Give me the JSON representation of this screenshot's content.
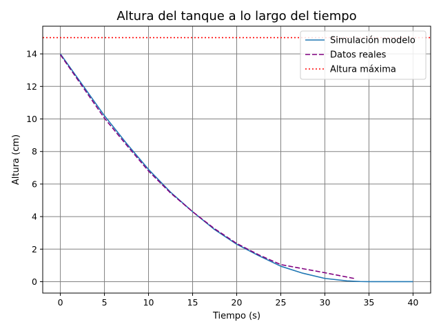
{
  "chart_data": {
    "type": "line",
    "title": "Altura del tanque a lo largo del tiempo",
    "xlabel": "Tiempo (s)",
    "ylabel": "Altura (cm)",
    "xlim": [
      -2,
      42
    ],
    "ylim": [
      -0.7,
      15.7
    ],
    "xticks": [
      0,
      5,
      10,
      15,
      20,
      25,
      30,
      35,
      40
    ],
    "yticks": [
      0,
      2,
      4,
      6,
      8,
      10,
      12,
      14
    ],
    "grid": true,
    "legend_position": "top-right",
    "series": [
      {
        "name": "Simulación modelo",
        "style": "solid",
        "color": "#1f77b4",
        "x": [
          0,
          2.5,
          5,
          7.5,
          10,
          12.5,
          15,
          17.5,
          20,
          22.5,
          25,
          27.5,
          30,
          32.5,
          34,
          35,
          37.5,
          40
        ],
        "y": [
          14.0,
          12.1,
          10.2,
          8.5,
          6.9,
          5.5,
          4.3,
          3.2,
          2.3,
          1.6,
          0.95,
          0.52,
          0.2,
          0.05,
          0.01,
          0.0,
          0.0,
          0.0
        ]
      },
      {
        "name": "Datos reales",
        "style": "dashed",
        "color": "#800080",
        "x": [
          0,
          2.5,
          5,
          7.5,
          10,
          12.5,
          15,
          17.5,
          20,
          22.5,
          25,
          27.5,
          30,
          33.3
        ],
        "y": [
          13.95,
          12.0,
          10.05,
          8.4,
          6.8,
          5.45,
          4.3,
          3.25,
          2.35,
          1.65,
          1.05,
          0.8,
          0.55,
          0.2
        ]
      },
      {
        "name": "Altura máxima",
        "style": "dotted",
        "color": "#ff0000",
        "hline": 15
      }
    ]
  }
}
